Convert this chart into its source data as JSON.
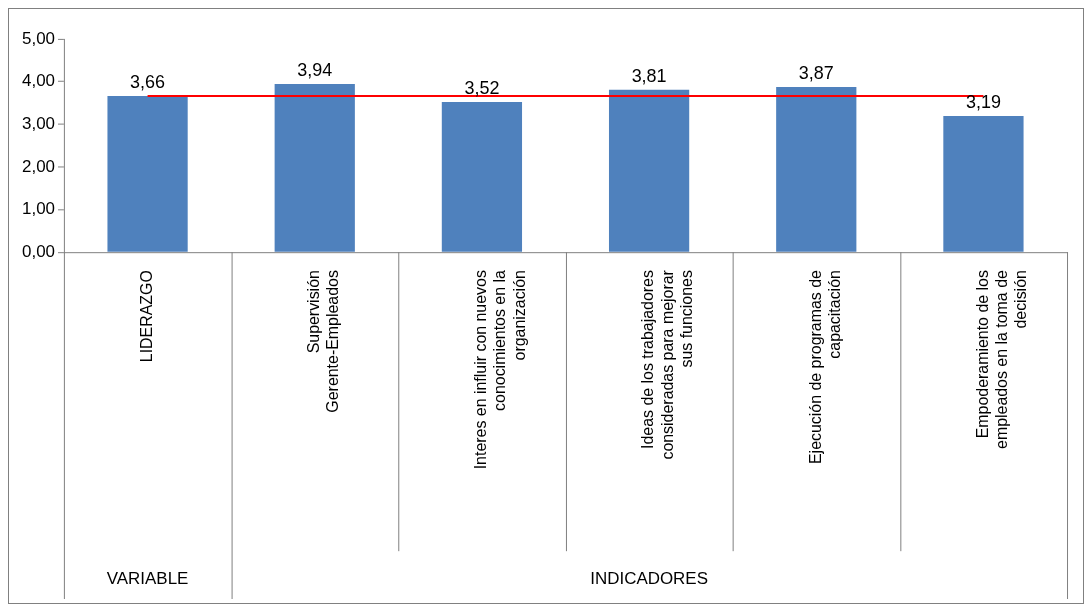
{
  "chart_data": {
    "type": "bar",
    "categories": [
      "LIDERAZGO",
      "Supervisión Gerente-Empleados",
      "Interes en influir con nuevos conocimientos en la organización",
      "Ideas de los trabajadores consideradas para mejorar sus funciones",
      "Ejecución de programas de capacitación",
      "Empoderamiento de los empleados en la toma de decisión"
    ],
    "values": [
      3.66,
      3.94,
      3.52,
      3.81,
      3.87,
      3.19
    ],
    "value_labels": [
      "3,66",
      "3,94",
      "3,52",
      "3,81",
      "3,87",
      "3,19"
    ],
    "color": "#4f81bd",
    "ylim": [
      0,
      5
    ],
    "yticks": [
      {
        "value": 0,
        "label": "0,00"
      },
      {
        "value": 1,
        "label": "1,00"
      },
      {
        "value": 2,
        "label": "2,00"
      },
      {
        "value": 3,
        "label": "3,00"
      },
      {
        "value": 4,
        "label": "4,00"
      },
      {
        "value": 5,
        "label": "5,00"
      }
    ],
    "ref_lines": [
      {
        "axis": "y",
        "value": 3.66,
        "color": "#ff0000"
      }
    ],
    "annotations": [
      "VARIABLE",
      "INDICADORES"
    ],
    "grid": false,
    "legend": false
  }
}
